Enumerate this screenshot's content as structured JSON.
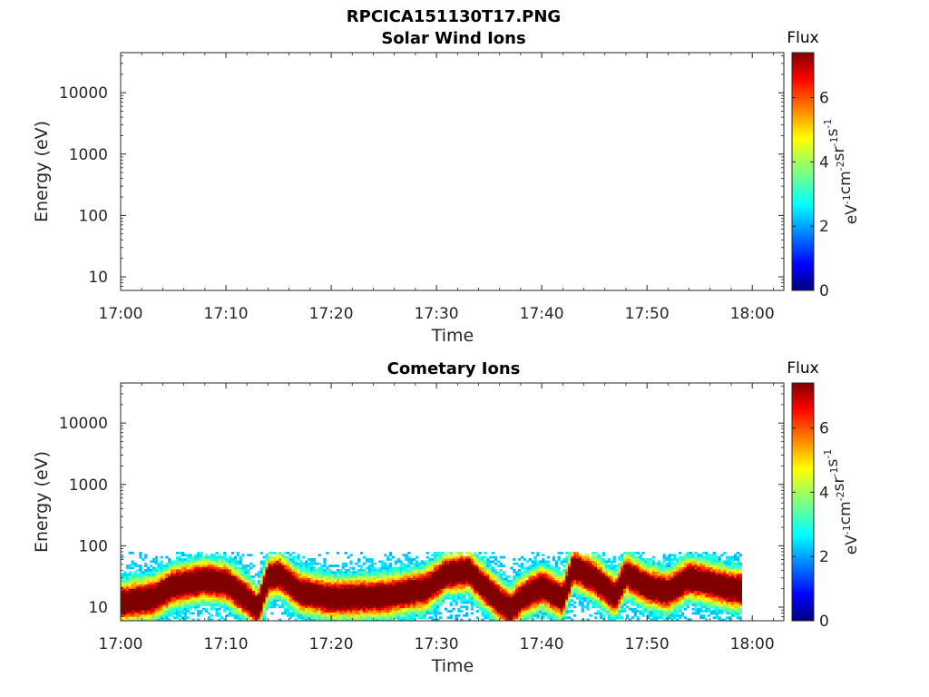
{
  "figure_title": "RPCICA151130T17.PNG",
  "colorbar": {
    "label": "Flux",
    "unit_parts": [
      "eV",
      "-1",
      "cm",
      "-2",
      "sr",
      "-1",
      "s",
      "-1"
    ],
    "ticks": [
      "0",
      "2",
      "4",
      "6"
    ],
    "range": [
      0,
      7.4
    ],
    "colormap": "jet"
  },
  "chart_data": [
    {
      "type": "heatmap",
      "title": "Solar Wind Ions",
      "xlabel": "Time",
      "ylabel": "Energy (eV)",
      "y_scale": "log",
      "ylim": [
        6,
        45000
      ],
      "xlim": [
        "17:00",
        "18:03"
      ],
      "x_ticks": [
        "17:00",
        "17:10",
        "17:20",
        "17:30",
        "17:40",
        "17:50",
        "18:00"
      ],
      "y_ticks": [
        "10",
        "100",
        "1000",
        "10000"
      ],
      "data": "empty"
    },
    {
      "type": "heatmap",
      "title": "Cometary Ions",
      "xlabel": "Time",
      "ylabel": "Energy (eV)",
      "y_scale": "log",
      "ylim": [
        6,
        45000
      ],
      "xlim": [
        "17:00",
        "18:03"
      ],
      "x_ticks": [
        "17:00",
        "17:10",
        "17:20",
        "17:30",
        "17:40",
        "17:50",
        "18:00"
      ],
      "y_ticks": [
        "10",
        "100",
        "1000",
        "10000"
      ],
      "data_end": "17:59",
      "peak_energy_eV": {
        "times": [
          "17:00",
          "17:03",
          "17:05",
          "17:08",
          "17:10",
          "17:12",
          "17:13",
          "17:14",
          "17:15",
          "17:17",
          "17:20",
          "17:25",
          "17:29",
          "17:31",
          "17:33",
          "17:35",
          "17:37",
          "17:38",
          "17:40",
          "17:42",
          "17:43",
          "17:45",
          "17:47",
          "17:48",
          "17:50",
          "17:52",
          "17:54",
          "17:56",
          "17:58",
          "17:59"
        ],
        "values": [
          12,
          14,
          22,
          28,
          25,
          14,
          9,
          30,
          35,
          18,
          14,
          15,
          20,
          35,
          40,
          18,
          9,
          14,
          22,
          14,
          45,
          30,
          15,
          35,
          22,
          18,
          30,
          25,
          20,
          20
        ]
      },
      "upper_cutoff_eV": 80,
      "lower_cutoff_eV": 6
    }
  ]
}
